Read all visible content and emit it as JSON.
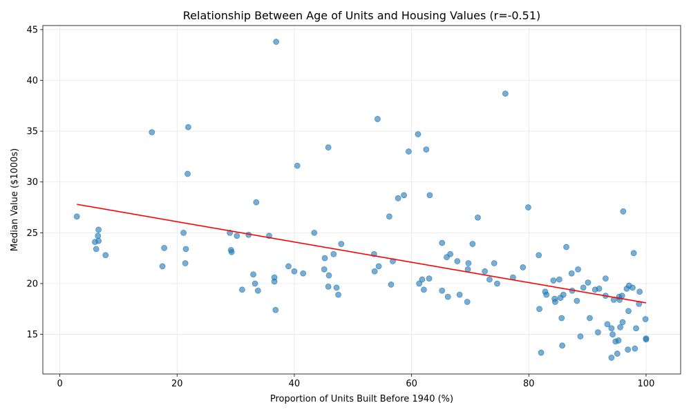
{
  "chart_data": {
    "type": "scatter",
    "title": "Relationship Between Age of Units and Housing Values (r=-0.51)",
    "xlabel": "Proportion of Units Built Before 1940 (%)",
    "ylabel": "Median Value ($1000s)",
    "xlim": [
      -2.9,
      105.9
    ],
    "ylim": [
      11.1,
      45.4
    ],
    "xticks": [
      0,
      20,
      40,
      60,
      80,
      100
    ],
    "yticks": [
      15,
      20,
      25,
      30,
      35,
      40,
      45
    ],
    "grid": true,
    "point_color": "#1f77b4",
    "line_color": "#ff0000",
    "trend_line": {
      "x": [
        2.9,
        100.0
      ],
      "y": [
        27.8,
        18.1
      ]
    },
    "points": [
      [
        2.9,
        26.6
      ],
      [
        6.0,
        24.1
      ],
      [
        6.2,
        23.4
      ],
      [
        6.5,
        24.7
      ],
      [
        6.6,
        25.3
      ],
      [
        6.6,
        24.2
      ],
      [
        7.8,
        22.8
      ],
      [
        15.7,
        34.9
      ],
      [
        17.5,
        21.7
      ],
      [
        17.8,
        23.5
      ],
      [
        21.1,
        25.0
      ],
      [
        21.4,
        22.0
      ],
      [
        21.5,
        23.4
      ],
      [
        21.8,
        30.8
      ],
      [
        21.9,
        35.4
      ],
      [
        29.0,
        25.0
      ],
      [
        29.2,
        23.3
      ],
      [
        29.3,
        23.1
      ],
      [
        30.2,
        24.7
      ],
      [
        31.1,
        19.4
      ],
      [
        32.2,
        24.8
      ],
      [
        33.0,
        20.9
      ],
      [
        33.3,
        20.0
      ],
      [
        33.5,
        28.0
      ],
      [
        33.8,
        19.3
      ],
      [
        35.7,
        24.7
      ],
      [
        36.6,
        20.6
      ],
      [
        36.6,
        20.2
      ],
      [
        36.8,
        17.4
      ],
      [
        36.9,
        43.8
      ],
      [
        39.0,
        21.7
      ],
      [
        40.0,
        21.2
      ],
      [
        40.5,
        31.6
      ],
      [
        41.5,
        21.0
      ],
      [
        43.4,
        25.0
      ],
      [
        45.1,
        21.4
      ],
      [
        45.2,
        22.5
      ],
      [
        45.8,
        19.7
      ],
      [
        45.8,
        33.4
      ],
      [
        45.9,
        20.8
      ],
      [
        46.7,
        22.9
      ],
      [
        47.2,
        19.6
      ],
      [
        47.5,
        18.9
      ],
      [
        48.0,
        23.9
      ],
      [
        53.6,
        22.9
      ],
      [
        53.7,
        21.2
      ],
      [
        54.2,
        36.2
      ],
      [
        54.4,
        21.7
      ],
      [
        56.2,
        26.6
      ],
      [
        56.5,
        19.9
      ],
      [
        56.8,
        22.2
      ],
      [
        57.7,
        28.4
      ],
      [
        58.7,
        28.7
      ],
      [
        59.5,
        33.0
      ],
      [
        61.1,
        34.7
      ],
      [
        61.3,
        20.0
      ],
      [
        61.8,
        20.4
      ],
      [
        62.1,
        19.4
      ],
      [
        62.5,
        33.2
      ],
      [
        63.0,
        20.5
      ],
      [
        63.1,
        28.7
      ],
      [
        65.2,
        24.0
      ],
      [
        65.2,
        19.3
      ],
      [
        66.0,
        22.6
      ],
      [
        66.2,
        18.7
      ],
      [
        66.6,
        22.9
      ],
      [
        67.8,
        22.2
      ],
      [
        68.2,
        18.9
      ],
      [
        69.5,
        18.2
      ],
      [
        69.6,
        21.4
      ],
      [
        69.7,
        22.0
      ],
      [
        70.4,
        23.9
      ],
      [
        71.3,
        26.5
      ],
      [
        72.5,
        21.2
      ],
      [
        73.3,
        20.4
      ],
      [
        74.1,
        22.0
      ],
      [
        74.6,
        20.0
      ],
      [
        76.0,
        38.7
      ],
      [
        77.3,
        20.6
      ],
      [
        79.0,
        21.6
      ],
      [
        79.9,
        27.5
      ],
      [
        81.7,
        22.8
      ],
      [
        81.8,
        17.5
      ],
      [
        82.1,
        13.2
      ],
      [
        82.8,
        19.2
      ],
      [
        83.0,
        18.9
      ],
      [
        84.2,
        20.3
      ],
      [
        84.4,
        18.5
      ],
      [
        84.5,
        18.2
      ],
      [
        85.2,
        20.4
      ],
      [
        85.4,
        18.6
      ],
      [
        85.6,
        16.6
      ],
      [
        85.7,
        13.9
      ],
      [
        85.9,
        18.9
      ],
      [
        86.4,
        23.6
      ],
      [
        87.3,
        21.0
      ],
      [
        87.4,
        19.3
      ],
      [
        88.2,
        18.3
      ],
      [
        88.4,
        21.4
      ],
      [
        88.8,
        14.8
      ],
      [
        89.3,
        19.6
      ],
      [
        90.1,
        20.1
      ],
      [
        90.4,
        16.6
      ],
      [
        91.3,
        19.4
      ],
      [
        91.8,
        15.2
      ],
      [
        92.0,
        19.5
      ],
      [
        93.1,
        18.8
      ],
      [
        93.1,
        20.5
      ],
      [
        93.4,
        16.0
      ],
      [
        94.1,
        15.6
      ],
      [
        94.1,
        12.7
      ],
      [
        94.3,
        15.0
      ],
      [
        94.5,
        18.4
      ],
      [
        94.8,
        14.3
      ],
      [
        95.1,
        13.1
      ],
      [
        95.3,
        14.4
      ],
      [
        95.4,
        18.7
      ],
      [
        95.5,
        18.4
      ],
      [
        95.6,
        15.7
      ],
      [
        95.9,
        18.8
      ],
      [
        96.0,
        16.2
      ],
      [
        96.1,
        27.1
      ],
      [
        96.7,
        19.5
      ],
      [
        96.9,
        13.5
      ],
      [
        97.0,
        17.3
      ],
      [
        97.1,
        19.8
      ],
      [
        97.7,
        19.6
      ],
      [
        97.9,
        23.0
      ],
      [
        98.1,
        13.6
      ],
      [
        98.3,
        15.6
      ],
      [
        98.8,
        18.0
      ],
      [
        98.9,
        19.2
      ],
      [
        99.9,
        16.5
      ],
      [
        100.0,
        14.6
      ],
      [
        100.0,
        14.5
      ]
    ]
  }
}
